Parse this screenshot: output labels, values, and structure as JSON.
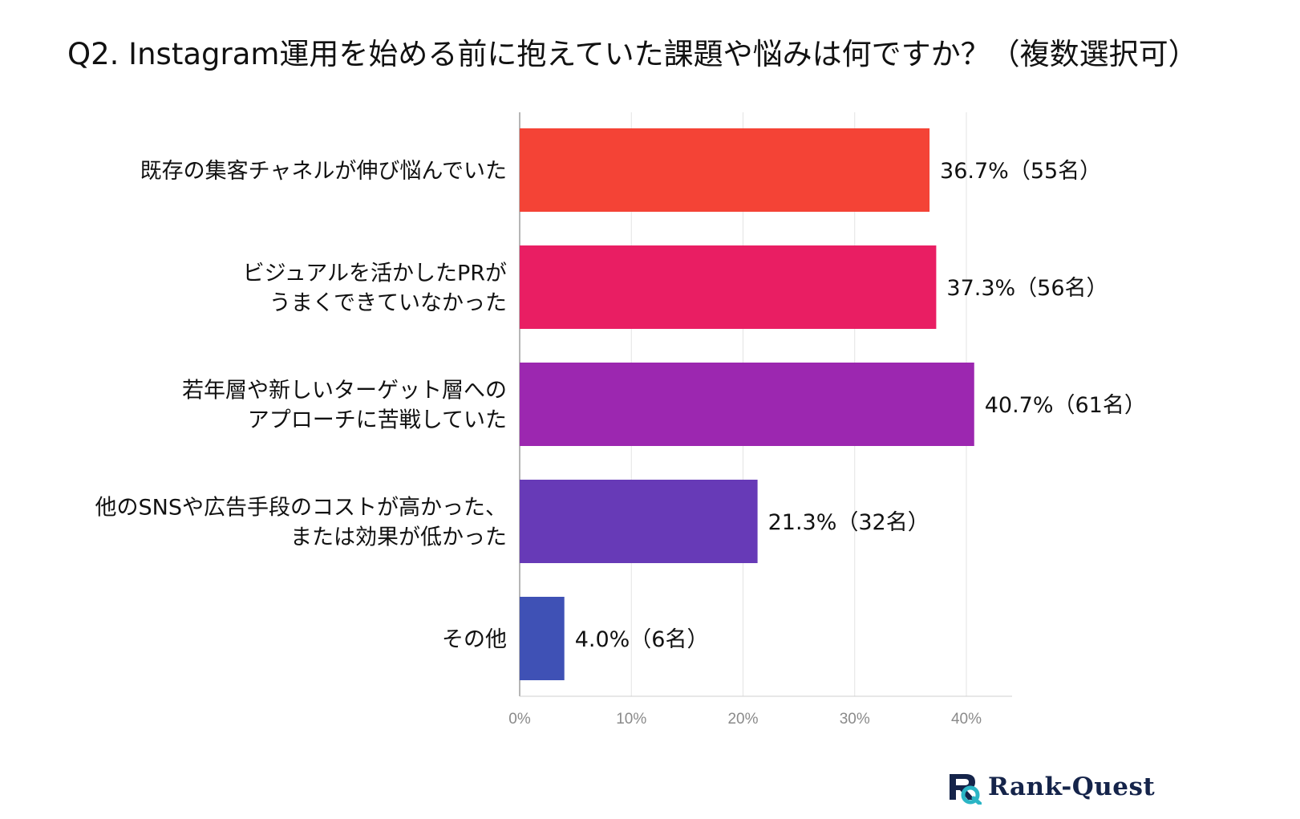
{
  "title": "Q2. Instagram運用を始める前に抱えていた課題や悩みは何ですか？（複数選択可）",
  "chart_data": {
    "type": "bar",
    "orientation": "horizontal",
    "title": "Q2. Instagram運用を始める前に抱えていた課題や悩みは何ですか？（複数選択可）",
    "xlabel": "",
    "ylabel": "",
    "xlim": [
      0,
      44
    ],
    "grid": true,
    "ticks": [
      {
        "value": 0,
        "label": "0%"
      },
      {
        "value": 10,
        "label": "10%"
      },
      {
        "value": 20,
        "label": "20%"
      },
      {
        "value": 30,
        "label": "30%"
      },
      {
        "value": 40,
        "label": "40%"
      }
    ],
    "bars": [
      {
        "category": "既存の集客チャネルが伸び悩んでいた",
        "label_lines": [
          "既存の集客チャネルが伸び悩んでいた"
        ],
        "value": 36.7,
        "count": 55,
        "value_label": "36.7%（55名）",
        "color": "#f44336"
      },
      {
        "category": "ビジュアルを活かしたPRがうまくできていなかった",
        "label_lines": [
          "ビジュアルを活かしたPRが",
          "うまくできていなかった"
        ],
        "value": 37.3,
        "count": 56,
        "value_label": "37.3%（56名）",
        "color": "#e91e63"
      },
      {
        "category": "若年層や新しいターゲット層へのアプローチに苦戦していた",
        "label_lines": [
          "若年層や新しいターゲット層への",
          "アプローチに苦戦していた"
        ],
        "value": 40.7,
        "count": 61,
        "value_label": "40.7%（61名）",
        "color": "#9c27b0"
      },
      {
        "category": "他のSNSや広告手段のコストが高かった、または効果が低かった",
        "label_lines": [
          "他のSNSや広告手段のコストが高かった、",
          "または効果が低かった"
        ],
        "value": 21.3,
        "count": 32,
        "value_label": "21.3%（32名）",
        "color": "#673ab7"
      },
      {
        "category": "その他",
        "label_lines": [
          "その他"
        ],
        "value": 4.0,
        "count": 6,
        "value_label": "4.0%（6名）",
        "color": "#3f51b5"
      }
    ]
  },
  "logo": {
    "text": "Rank-Quest",
    "icon": "rank-quest-logo-icon",
    "colors": {
      "dark": "#15244a",
      "accent": "#2bb5c5"
    }
  }
}
